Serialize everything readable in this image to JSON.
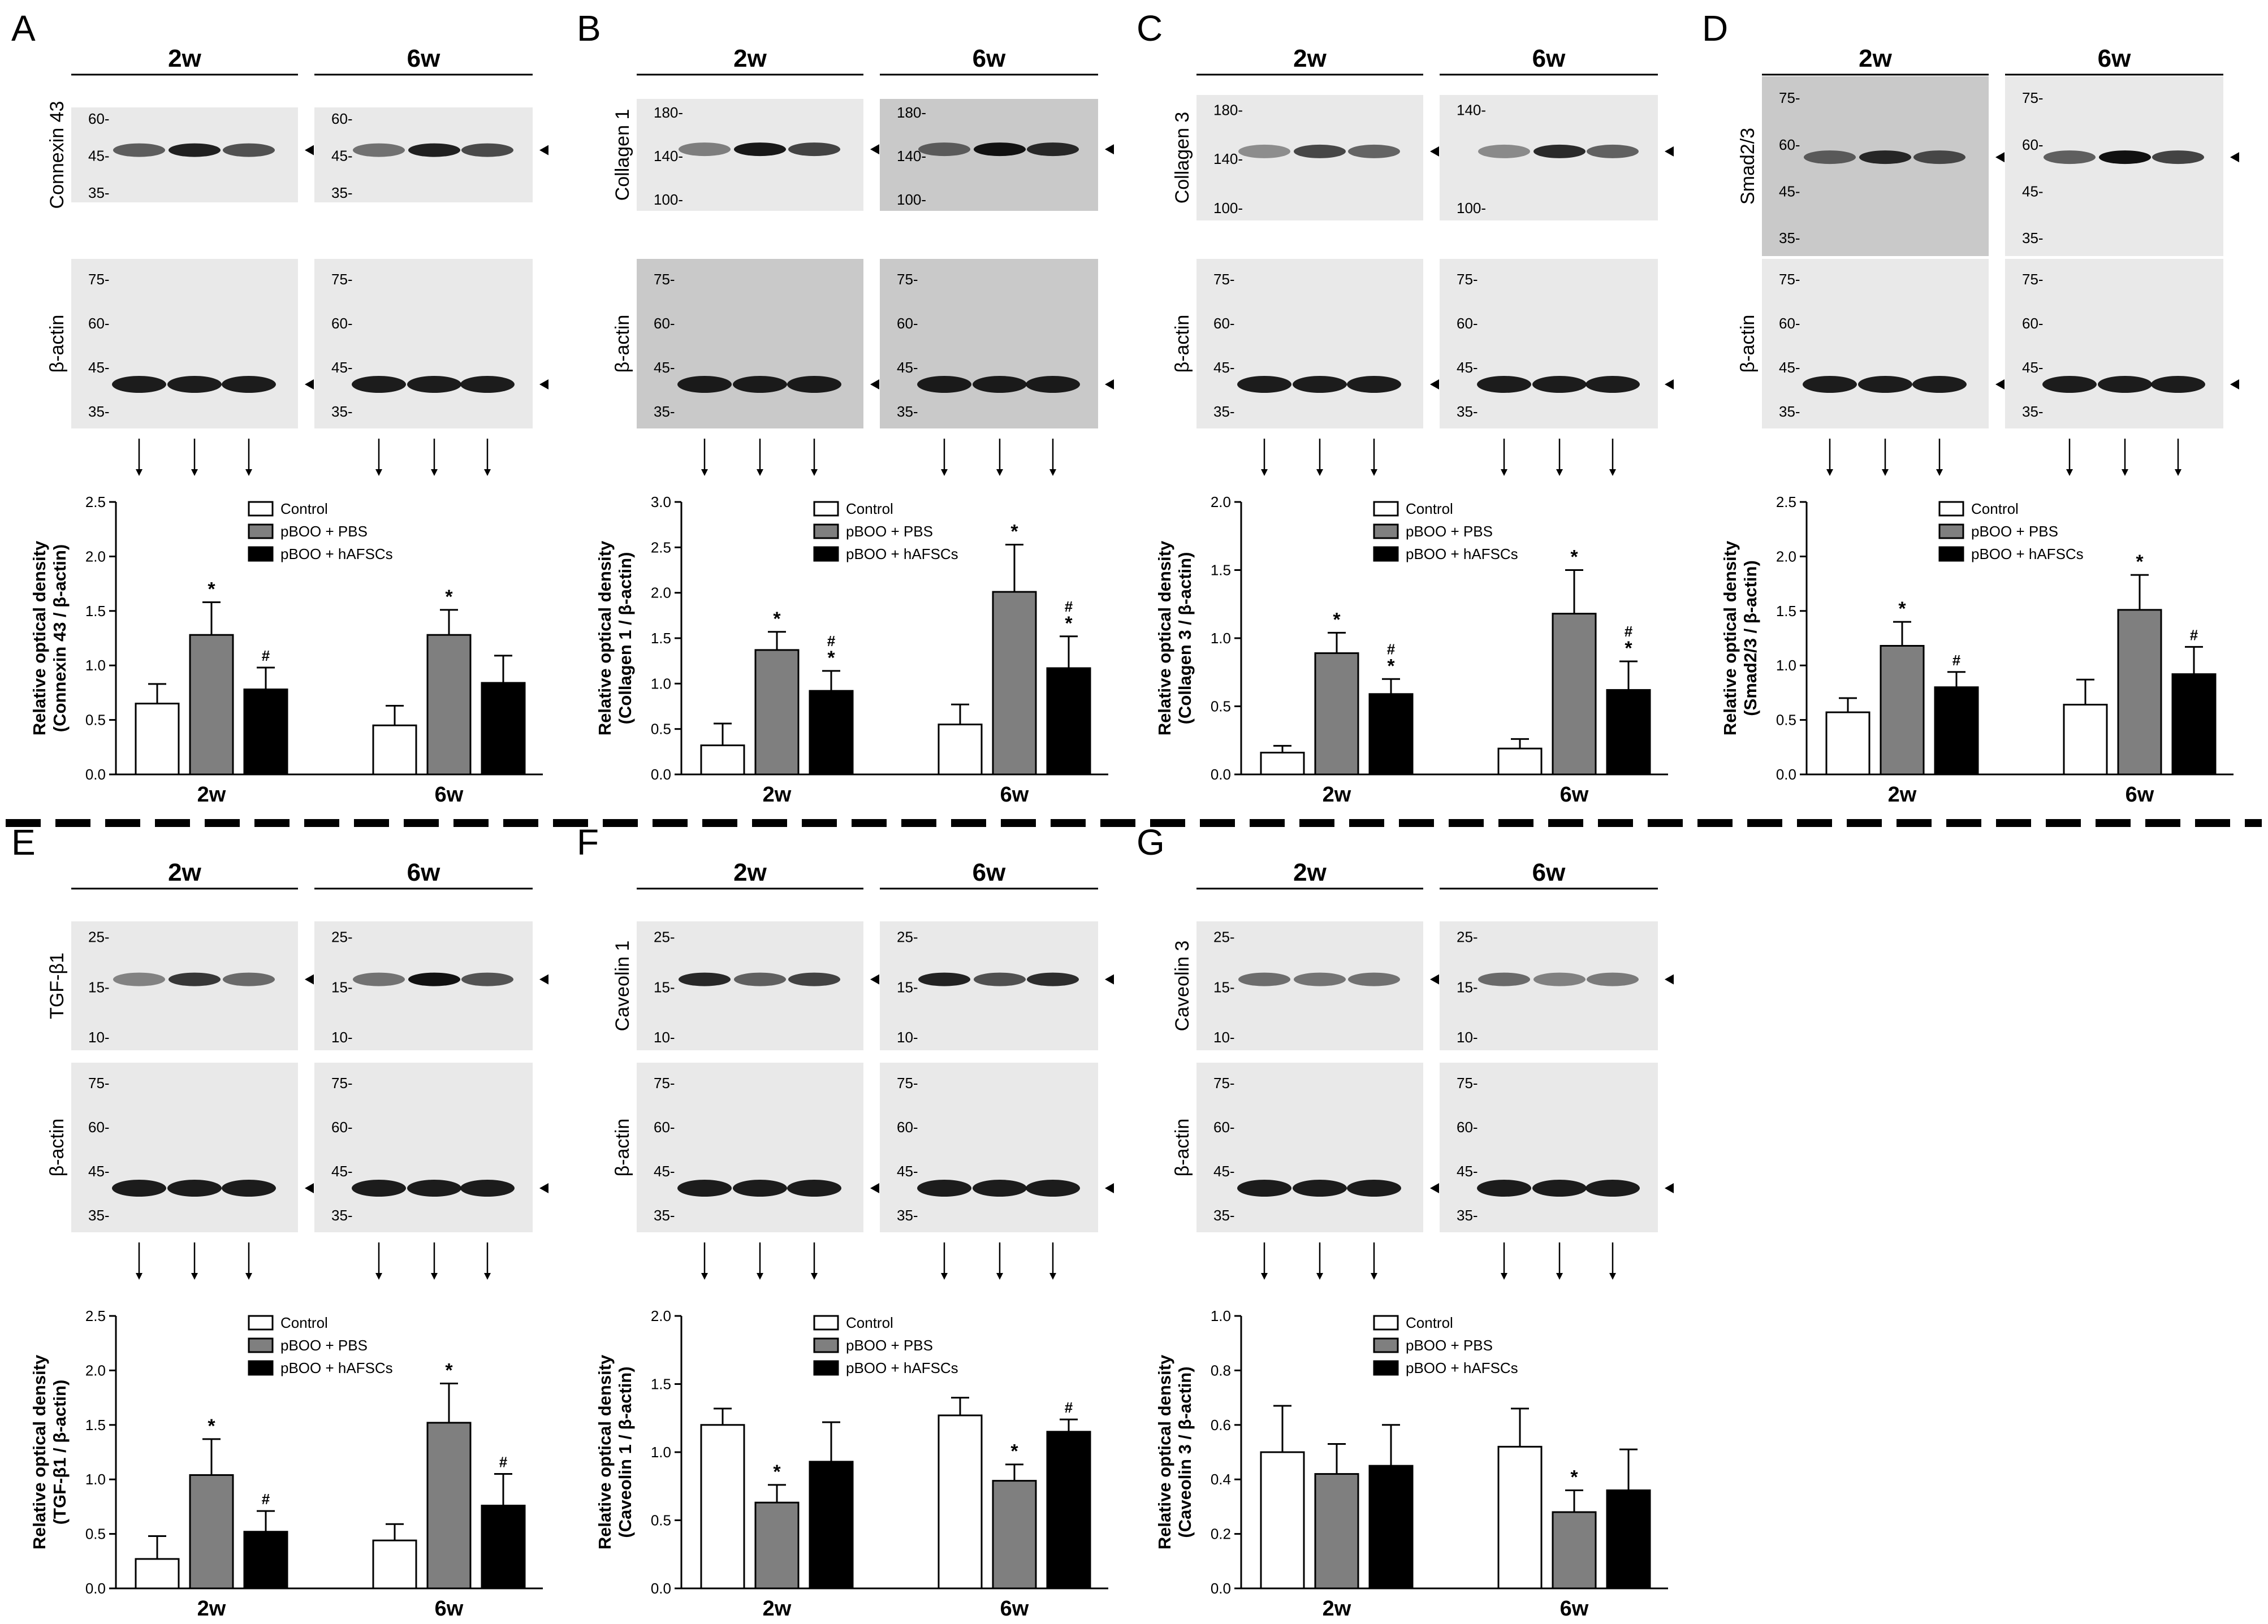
{
  "legend_items": [
    "Control",
    "pBOO + PBS",
    "pBOO + hAFSCs"
  ],
  "colors": {
    "control": "#ffffff",
    "pbs": "#7f7f7f",
    "hafsc": "#000000",
    "stroke": "#000000"
  },
  "time_labels": [
    "2w",
    "6w"
  ],
  "panels": [
    {
      "letter": "A",
      "blot_target": "Connexin 43",
      "blot_loading": "β-actin",
      "target_markers_2w": [
        "60-",
        "45-",
        "35-"
      ],
      "target_markers_6w": [
        "60-",
        "45-",
        "35-"
      ],
      "actin_markers_2w": [
        "75-",
        "60-",
        "45-",
        "35-"
      ],
      "actin_markers_6w": [
        "75-",
        "60-",
        "45-",
        "35-"
      ],
      "chart_data": {
        "type": "bar",
        "ylabel": "Relative optical density",
        "ylabel2": "(Connexin 43 / β-actin)",
        "categories": [
          "2w",
          "6w"
        ],
        "yticks": [
          "0.0",
          "0.5",
          "1.0",
          "1.5",
          "2.0",
          "2.5"
        ],
        "ylim": [
          0,
          2.5
        ],
        "series": [
          {
            "name": "Control",
            "values": [
              0.65,
              0.45
            ],
            "errors": [
              0.18,
              0.18
            ],
            "marks": [
              "",
              ""
            ]
          },
          {
            "name": "pBOO + PBS",
            "values": [
              1.28,
              1.28
            ],
            "errors": [
              0.3,
              0.23
            ],
            "marks": [
              "*",
              "*"
            ]
          },
          {
            "name": "pBOO + hAFSCs",
            "values": [
              0.78,
              0.84
            ],
            "errors": [
              0.2,
              0.25
            ],
            "marks": [
              "#",
              ""
            ]
          }
        ]
      }
    },
    {
      "letter": "B",
      "blot_target": "Collagen 1",
      "blot_loading": "β-actin",
      "target_markers_2w": [
        "180-",
        "140-",
        "100-"
      ],
      "target_markers_6w": [
        "180-",
        "140-",
        "100-"
      ],
      "actin_markers_2w": [
        "75-",
        "60-",
        "45-",
        "35-"
      ],
      "actin_markers_6w": [
        "75-",
        "60-",
        "45-",
        "35-"
      ],
      "chart_data": {
        "type": "bar",
        "ylabel": "Relative optical density",
        "ylabel2": "(Collagen 1 / β-actin)",
        "categories": [
          "2w",
          "6w"
        ],
        "yticks": [
          "0.0",
          "0.5",
          "1.0",
          "1.5",
          "2.0",
          "2.5",
          "3.0"
        ],
        "ylim": [
          0,
          3.0
        ],
        "series": [
          {
            "name": "Control",
            "values": [
              0.32,
              0.55
            ],
            "errors": [
              0.24,
              0.22
            ],
            "marks": [
              "",
              ""
            ]
          },
          {
            "name": "pBOO + PBS",
            "values": [
              1.37,
              2.01
            ],
            "errors": [
              0.2,
              0.52
            ],
            "marks": [
              "*",
              "*"
            ]
          },
          {
            "name": "pBOO + hAFSCs",
            "values": [
              0.92,
              1.17
            ],
            "errors": [
              0.22,
              0.35
            ],
            "marks": [
              "#\n*",
              "#\n*"
            ]
          }
        ]
      }
    },
    {
      "letter": "C",
      "blot_target": "Collagen 3",
      "blot_loading": "β-actin",
      "target_markers_2w": [
        "180-",
        "140-",
        "100-"
      ],
      "target_markers_6w": [
        "140-",
        "100-"
      ],
      "actin_markers_2w": [
        "75-",
        "60-",
        "45-",
        "35-"
      ],
      "actin_markers_6w": [
        "75-",
        "60-",
        "45-",
        "35-"
      ],
      "chart_data": {
        "type": "bar",
        "ylabel": "Relative optical density",
        "ylabel2": "(Collagen 3 / β-actin)",
        "categories": [
          "2w",
          "6w"
        ],
        "yticks": [
          "0.0",
          "0.5",
          "1.0",
          "1.5",
          "2.0"
        ],
        "ylim": [
          0,
          2.0
        ],
        "series": [
          {
            "name": "Control",
            "values": [
              0.16,
              0.19
            ],
            "errors": [
              0.05,
              0.07
            ],
            "marks": [
              "",
              ""
            ]
          },
          {
            "name": "pBOO + PBS",
            "values": [
              0.89,
              1.18
            ],
            "errors": [
              0.15,
              0.32
            ],
            "marks": [
              "*",
              "*"
            ]
          },
          {
            "name": "pBOO + hAFSCs",
            "values": [
              0.59,
              0.62
            ],
            "errors": [
              0.11,
              0.21
            ],
            "marks": [
              "#\n*",
              "#\n*"
            ]
          }
        ]
      }
    },
    {
      "letter": "D",
      "blot_target": "Smad2/3",
      "blot_loading": "β-actin",
      "target_markers_2w": [
        "75-",
        "60-",
        "45-",
        "35-"
      ],
      "target_markers_6w": [
        "75-",
        "60-",
        "45-",
        "35-"
      ],
      "actin_markers_2w": [
        "75-",
        "60-",
        "45-",
        "35-"
      ],
      "actin_markers_6w": [
        "75-",
        "60-",
        "45-",
        "35-"
      ],
      "chart_data": {
        "type": "bar",
        "ylabel": "Relative optical density",
        "ylabel2": "(Smad2/3 / β-actin)",
        "categories": [
          "2w",
          "6w"
        ],
        "yticks": [
          "0.0",
          "0.5",
          "1.0",
          "1.5",
          "2.0",
          "2.5"
        ],
        "ylim": [
          0,
          2.5
        ],
        "series": [
          {
            "name": "Control",
            "values": [
              0.57,
              0.64
            ],
            "errors": [
              0.13,
              0.23
            ],
            "marks": [
              "",
              ""
            ]
          },
          {
            "name": "pBOO + PBS",
            "values": [
              1.18,
              1.51
            ],
            "errors": [
              0.22,
              0.32
            ],
            "marks": [
              "*",
              "*"
            ]
          },
          {
            "name": "pBOO + hAFSCs",
            "values": [
              0.8,
              0.92
            ],
            "errors": [
              0.14,
              0.25
            ],
            "marks": [
              "#",
              "#"
            ]
          }
        ]
      }
    },
    {
      "letter": "E",
      "blot_target": "TGF-β1",
      "blot_loading": "β-actin",
      "target_markers_2w": [
        "25-",
        "15-",
        "10-"
      ],
      "target_markers_6w": [
        "25-",
        "15-",
        "10-"
      ],
      "actin_markers_2w": [
        "75-",
        "60-",
        "45-",
        "35-"
      ],
      "actin_markers_6w": [
        "75-",
        "60-",
        "45-",
        "35-"
      ],
      "chart_data": {
        "type": "bar",
        "ylabel": "Relative optical density",
        "ylabel2": "(TGF-β1 / β-actin)",
        "categories": [
          "2w",
          "6w"
        ],
        "yticks": [
          "0.0",
          "0.5",
          "1.0",
          "1.5",
          "2.0",
          "2.5"
        ],
        "ylim": [
          0,
          2.5
        ],
        "series": [
          {
            "name": "Control",
            "values": [
              0.27,
              0.44
            ],
            "errors": [
              0.21,
              0.15
            ],
            "marks": [
              "",
              ""
            ]
          },
          {
            "name": "pBOO + PBS",
            "values": [
              1.04,
              1.52
            ],
            "errors": [
              0.33,
              0.36
            ],
            "marks": [
              "*",
              "*"
            ]
          },
          {
            "name": "pBOO + hAFSCs",
            "values": [
              0.52,
              0.76
            ],
            "errors": [
              0.19,
              0.29
            ],
            "marks": [
              "#",
              "#"
            ]
          }
        ]
      }
    },
    {
      "letter": "F",
      "blot_target": "Caveolin 1",
      "blot_loading": "β-actin",
      "target_markers_2w": [
        "25-",
        "15-",
        "10-"
      ],
      "target_markers_6w": [
        "25-",
        "15-",
        "10-"
      ],
      "actin_markers_2w": [
        "75-",
        "60-",
        "45-",
        "35-"
      ],
      "actin_markers_6w": [
        "75-",
        "60-",
        "45-",
        "35-"
      ],
      "chart_data": {
        "type": "bar",
        "ylabel": "Relative optical density",
        "ylabel2": "(Caveolin 1 / β-actin)",
        "categories": [
          "2w",
          "6w"
        ],
        "yticks": [
          "0.0",
          "0.5",
          "1.0",
          "1.5",
          "2.0"
        ],
        "ylim": [
          0,
          2.0
        ],
        "series": [
          {
            "name": "Control",
            "values": [
              1.2,
              1.27
            ],
            "errors": [
              0.12,
              0.13
            ],
            "marks": [
              "",
              ""
            ]
          },
          {
            "name": "pBOO + PBS",
            "values": [
              0.63,
              0.79
            ],
            "errors": [
              0.13,
              0.12
            ],
            "marks": [
              "*",
              "*"
            ]
          },
          {
            "name": "pBOO + hAFSCs",
            "values": [
              0.93,
              1.15
            ],
            "errors": [
              0.29,
              0.09
            ],
            "marks": [
              "",
              "#"
            ]
          }
        ]
      }
    },
    {
      "letter": "G",
      "blot_target": "Caveolin 3",
      "blot_loading": "β-actin",
      "target_markers_2w": [
        "25-",
        "15-",
        "10-"
      ],
      "target_markers_6w": [
        "25-",
        "15-",
        "10-"
      ],
      "actin_markers_2w": [
        "75-",
        "60-",
        "45-",
        "35-"
      ],
      "actin_markers_6w": [
        "75-",
        "60-",
        "45-",
        "35-"
      ],
      "chart_data": {
        "type": "bar",
        "ylabel": "Relative optical density",
        "ylabel2": "(Caveolin 3 / β-actin)",
        "categories": [
          "2w",
          "6w"
        ],
        "yticks": [
          "0.0",
          "0.2",
          "0.4",
          "0.6",
          "0.8",
          "1.0"
        ],
        "ylim": [
          0,
          1.0
        ],
        "series": [
          {
            "name": "Control",
            "values": [
              0.5,
              0.52
            ],
            "errors": [
              0.17,
              0.14
            ],
            "marks": [
              "",
              ""
            ]
          },
          {
            "name": "pBOO + PBS",
            "values": [
              0.42,
              0.28
            ],
            "errors": [
              0.11,
              0.08
            ],
            "marks": [
              "",
              "*"
            ]
          },
          {
            "name": "pBOO + hAFSCs",
            "values": [
              0.45,
              0.36
            ],
            "errors": [
              0.15,
              0.15
            ],
            "marks": [
              "",
              ""
            ]
          }
        ]
      }
    }
  ]
}
